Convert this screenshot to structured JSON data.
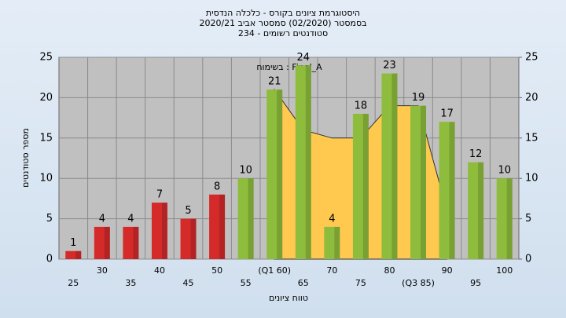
{
  "chart_data": {
    "type": "bar",
    "title_lines": [
      "היסטוגרמת ציונים בקורס - כלכלה הנדסית",
      "בסמסטר  (02/2020)  סמסטר אביב 2020/21",
      "סטודנטים רשומים - 234"
    ],
    "annotation": "בשימוח : Final_A",
    "x_label": "טווח ציונים",
    "y_label": "מספר סטודנטים",
    "categories": [
      "25",
      "30",
      "35",
      "40",
      "45",
      "50",
      "55",
      "(Q1 60)",
      "65",
      "70",
      "75",
      "80",
      "(Q3 85)",
      "90",
      "95",
      "100"
    ],
    "values": [
      1,
      4,
      4,
      7,
      5,
      8,
      10,
      21,
      24,
      4,
      18,
      23,
      19,
      17,
      12,
      10
    ],
    "colors": [
      "#d42a2a",
      "#d42a2a",
      "#d42a2a",
      "#d42a2a",
      "#d42a2a",
      "#d42a2a",
      "#8ebc3c",
      "#8ebc3c",
      "#8ebc3c",
      "#8ebc3c",
      "#8ebc3c",
      "#8ebc3c",
      "#8ebc3c",
      "#8ebc3c",
      "#8ebc3c",
      "#8ebc3c"
    ],
    "overlay": {
      "color": "#ffc94f",
      "values": [
        null,
        null,
        null,
        null,
        null,
        null,
        null,
        21,
        16,
        15,
        15,
        19,
        19,
        6,
        null,
        null
      ]
    },
    "ylim": [
      0,
      25
    ],
    "yticks": [
      0,
      5,
      10,
      15,
      20,
      25
    ],
    "y2lim": [
      0,
      25
    ],
    "y2ticks": [
      0,
      5,
      10,
      15,
      20,
      25
    ],
    "grid": true
  }
}
